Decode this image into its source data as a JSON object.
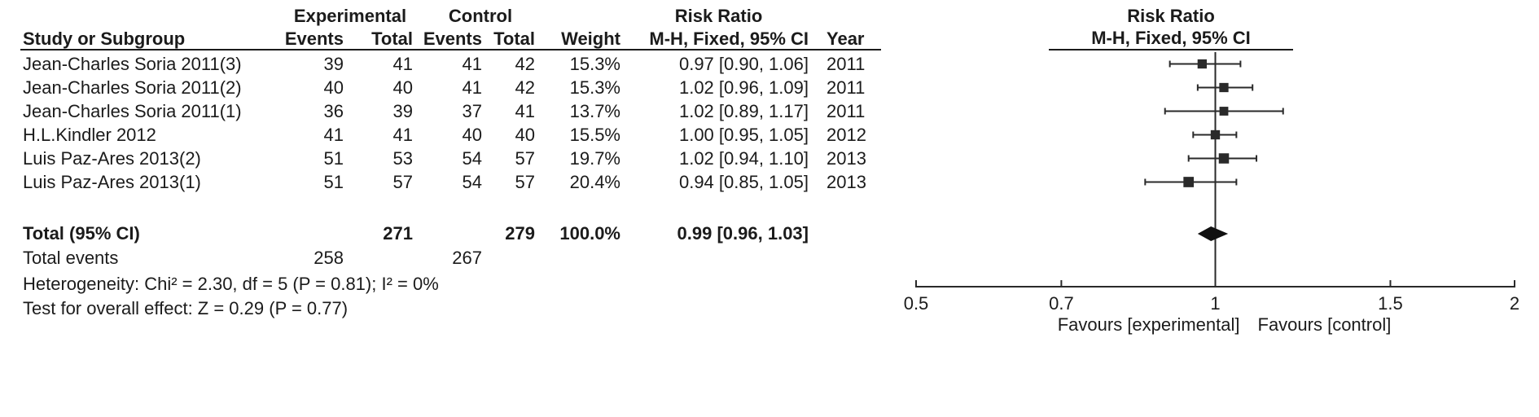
{
  "figure": {
    "group_headers": {
      "experimental": "Experimental",
      "control": "Control",
      "risk_ratio": "Risk Ratio",
      "risk_ratio_plot": "Risk Ratio"
    },
    "column_headers": {
      "study": "Study or Subgroup",
      "events": "Events",
      "total": "Total",
      "events2": "Events",
      "total2": "Total",
      "weight": "Weight",
      "ci": "M-H, Fixed, 95% CI",
      "year": "Year",
      "ci_plot": "M-H, Fixed, 95% CI"
    }
  },
  "chart_data": {
    "type": "forest",
    "effect_measure": "Risk Ratio",
    "method": "M-H, Fixed, 95% CI",
    "x_scale": "log",
    "xlim": [
      0.5,
      2
    ],
    "x_ticks": [
      0.5,
      0.7,
      1,
      1.5,
      2
    ],
    "favours_left": "Favours [experimental]",
    "favours_right": "Favours [control]",
    "studies": [
      {
        "study": "Jean-Charles Soria 2011(3)",
        "exp_events": "39",
        "exp_total": "41",
        "ctrl_events": "41",
        "ctrl_total": "42",
        "weight": "15.3%",
        "weight_pct": 15.3,
        "rr": 0.97,
        "ci_low": 0.9,
        "ci_high": 1.06,
        "estimate_label": "0.97 [0.90, 1.06]",
        "year": "2011"
      },
      {
        "study": "Jean-Charles Soria 2011(2)",
        "exp_events": "40",
        "exp_total": "40",
        "ctrl_events": "41",
        "ctrl_total": "42",
        "weight": "15.3%",
        "weight_pct": 15.3,
        "rr": 1.02,
        "ci_low": 0.96,
        "ci_high": 1.09,
        "estimate_label": "1.02 [0.96, 1.09]",
        "year": "2011"
      },
      {
        "study": "Jean-Charles Soria 2011(1)",
        "exp_events": "36",
        "exp_total": "39",
        "ctrl_events": "37",
        "ctrl_total": "41",
        "weight": "13.7%",
        "weight_pct": 13.7,
        "rr": 1.02,
        "ci_low": 0.89,
        "ci_high": 1.17,
        "estimate_label": "1.02 [0.89, 1.17]",
        "year": "2011"
      },
      {
        "study": "H.L.Kindler 2012",
        "exp_events": "41",
        "exp_total": "41",
        "ctrl_events": "40",
        "ctrl_total": "40",
        "weight": "15.5%",
        "weight_pct": 15.5,
        "rr": 1.0,
        "ci_low": 0.95,
        "ci_high": 1.05,
        "estimate_label": "1.00 [0.95, 1.05]",
        "year": "2012"
      },
      {
        "study": "Luis Paz-Ares 2013(2)",
        "exp_events": "51",
        "exp_total": "53",
        "ctrl_events": "54",
        "ctrl_total": "57",
        "weight": "19.7%",
        "weight_pct": 19.7,
        "rr": 1.02,
        "ci_low": 0.94,
        "ci_high": 1.1,
        "estimate_label": "1.02 [0.94, 1.10]",
        "year": "2013"
      },
      {
        "study": "Luis Paz-Ares 2013(1)",
        "exp_events": "51",
        "exp_total": "57",
        "ctrl_events": "54",
        "ctrl_total": "57",
        "weight": "20.4%",
        "weight_pct": 20.4,
        "rr": 0.94,
        "ci_low": 0.85,
        "ci_high": 1.05,
        "estimate_label": "0.94 [0.85, 1.05]",
        "year": "2013"
      }
    ],
    "total": {
      "label": "Total (95% CI)",
      "exp_total": "271",
      "ctrl_total": "279",
      "weight": "100.0%",
      "rr": 0.99,
      "ci_low": 0.96,
      "ci_high": 1.03,
      "estimate_label": "0.99 [0.96, 1.03]"
    },
    "total_events": {
      "label": "Total events",
      "exp_events": "258",
      "ctrl_events": "267"
    },
    "footnotes": {
      "heterogeneity": "Heterogeneity: Chi² = 2.30, df = 5 (P = 0.81); I² = 0%",
      "overall_effect": "Test for overall effect: Z = 0.29 (P = 0.77)"
    }
  }
}
